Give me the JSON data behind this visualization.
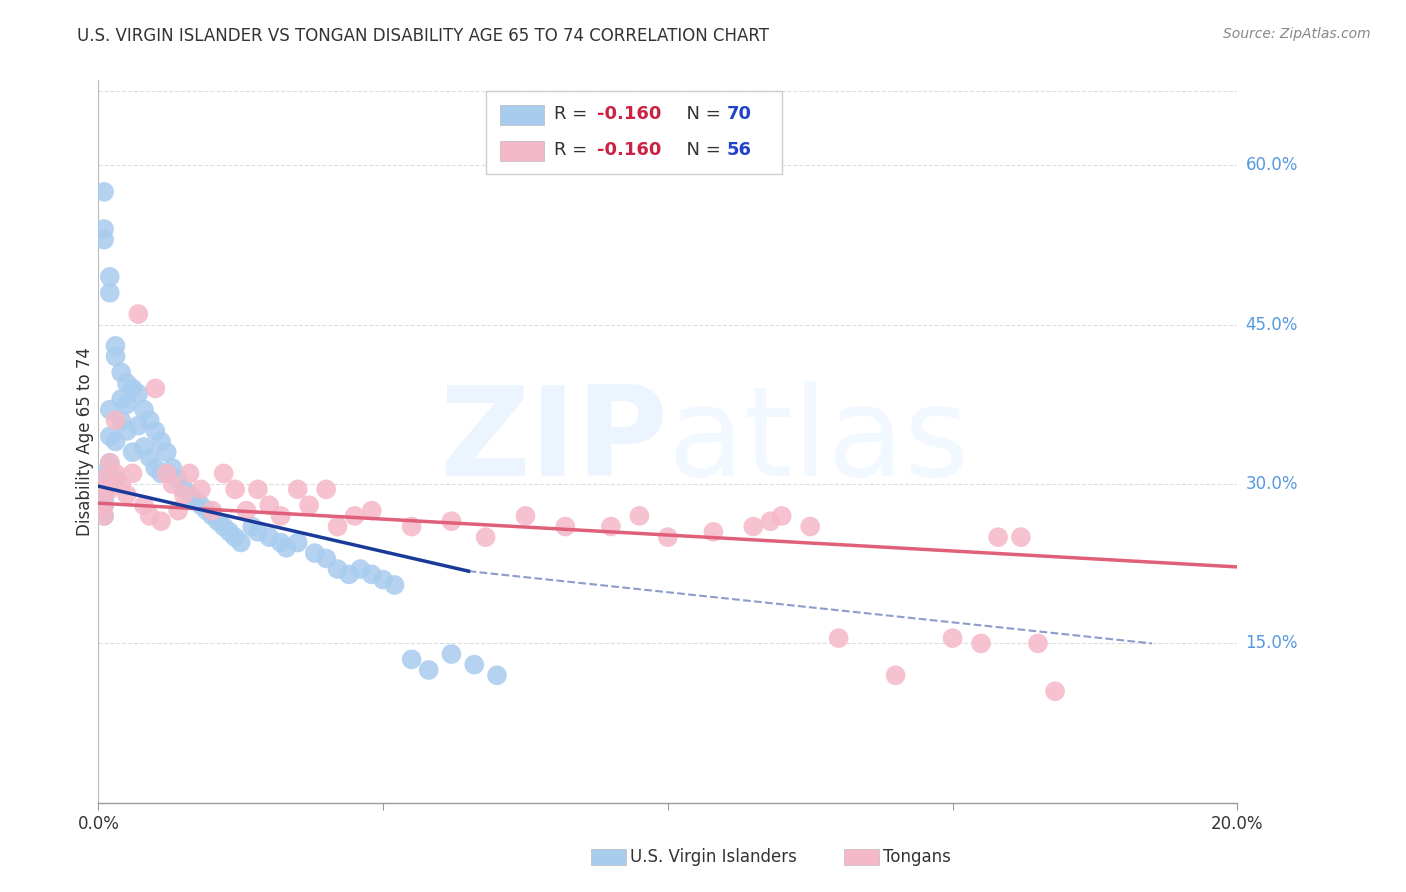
{
  "title": "U.S. VIRGIN ISLANDER VS TONGAN DISABILITY AGE 65 TO 74 CORRELATION CHART",
  "source": "Source: ZipAtlas.com",
  "ylabel": "Disability Age 65 to 74",
  "xlim": [
    0.0,
    0.2
  ],
  "ylim": [
    0.0,
    0.68
  ],
  "ytick_right": [
    0.6,
    0.45,
    0.3,
    0.15
  ],
  "ytick_right_labels": [
    "60.0%",
    "45.0%",
    "30.0%",
    "15.0%"
  ],
  "blue_color": "#a8ccee",
  "pink_color": "#f5b8c8",
  "blue_line_color": "#1a3a99",
  "pink_line_color": "#e0607a",
  "blue_label": "U.S. Virgin Islanders",
  "pink_label": "Tongans",
  "watermark_zip": "ZIP",
  "watermark_atlas": "atlas",
  "background_color": "#ffffff",
  "blue_r_label": "R = ",
  "blue_r_val": "-0.160",
  "blue_n_label": "  N = ",
  "blue_n_val": "70",
  "pink_r_label": "R = ",
  "pink_r_val": "-0.160",
  "pink_n_label": "  N = ",
  "pink_n_val": "56",
  "r_color": "#cc2244",
  "n_color": "#2244cc",
  "text_color": "#333333",
  "right_label_color": "#5599dd",
  "grid_color": "#dddddd",
  "blue_trend_x0": 0.0,
  "blue_trend_y0": 0.298,
  "blue_trend_x1_solid": 0.065,
  "blue_trend_y1_solid": 0.218,
  "blue_trend_x1_dash": 0.185,
  "blue_trend_y1_dash": 0.15,
  "pink_trend_x0": 0.0,
  "pink_trend_y0": 0.282,
  "pink_trend_x1": 0.2,
  "pink_trend_y1": 0.222,
  "blue_x": [
    0.001,
    0.001,
    0.001,
    0.001,
    0.001,
    0.001,
    0.001,
    0.001,
    0.001,
    0.001,
    0.002,
    0.002,
    0.002,
    0.002,
    0.002,
    0.003,
    0.003,
    0.003,
    0.003,
    0.004,
    0.004,
    0.004,
    0.005,
    0.005,
    0.005,
    0.006,
    0.006,
    0.007,
    0.007,
    0.008,
    0.008,
    0.009,
    0.009,
    0.01,
    0.01,
    0.011,
    0.011,
    0.012,
    0.013,
    0.014,
    0.015,
    0.016,
    0.017,
    0.018,
    0.019,
    0.02,
    0.021,
    0.022,
    0.023,
    0.024,
    0.025,
    0.027,
    0.028,
    0.03,
    0.032,
    0.033,
    0.035,
    0.038,
    0.04,
    0.042,
    0.044,
    0.046,
    0.048,
    0.05,
    0.052,
    0.055,
    0.058,
    0.062,
    0.066,
    0.07
  ],
  "blue_y": [
    0.575,
    0.54,
    0.53,
    0.31,
    0.3,
    0.295,
    0.292,
    0.285,
    0.28,
    0.27,
    0.495,
    0.48,
    0.37,
    0.345,
    0.32,
    0.43,
    0.42,
    0.34,
    0.305,
    0.405,
    0.38,
    0.36,
    0.395,
    0.375,
    0.35,
    0.39,
    0.33,
    0.385,
    0.355,
    0.37,
    0.335,
    0.36,
    0.325,
    0.35,
    0.315,
    0.34,
    0.31,
    0.33,
    0.315,
    0.305,
    0.295,
    0.29,
    0.285,
    0.28,
    0.275,
    0.27,
    0.265,
    0.26,
    0.255,
    0.25,
    0.245,
    0.26,
    0.255,
    0.25,
    0.245,
    0.24,
    0.245,
    0.235,
    0.23,
    0.22,
    0.215,
    0.22,
    0.215,
    0.21,
    0.205,
    0.135,
    0.125,
    0.14,
    0.13,
    0.12
  ],
  "pink_x": [
    0.001,
    0.001,
    0.001,
    0.001,
    0.002,
    0.002,
    0.003,
    0.003,
    0.004,
    0.005,
    0.006,
    0.007,
    0.008,
    0.009,
    0.01,
    0.011,
    0.012,
    0.013,
    0.014,
    0.015,
    0.016,
    0.018,
    0.02,
    0.022,
    0.024,
    0.026,
    0.028,
    0.03,
    0.032,
    0.035,
    0.037,
    0.04,
    0.042,
    0.045,
    0.048,
    0.055,
    0.062,
    0.068,
    0.075,
    0.082,
    0.09,
    0.095,
    0.1,
    0.108,
    0.115,
    0.118,
    0.12,
    0.125,
    0.13,
    0.14,
    0.15,
    0.155,
    0.158,
    0.162,
    0.165,
    0.168
  ],
  "pink_y": [
    0.305,
    0.295,
    0.28,
    0.27,
    0.32,
    0.295,
    0.36,
    0.31,
    0.3,
    0.29,
    0.31,
    0.46,
    0.28,
    0.27,
    0.39,
    0.265,
    0.31,
    0.3,
    0.275,
    0.29,
    0.31,
    0.295,
    0.275,
    0.31,
    0.295,
    0.275,
    0.295,
    0.28,
    0.27,
    0.295,
    0.28,
    0.295,
    0.26,
    0.27,
    0.275,
    0.26,
    0.265,
    0.25,
    0.27,
    0.26,
    0.26,
    0.27,
    0.25,
    0.255,
    0.26,
    0.265,
    0.27,
    0.26,
    0.155,
    0.12,
    0.155,
    0.15,
    0.25,
    0.25,
    0.15,
    0.105
  ]
}
